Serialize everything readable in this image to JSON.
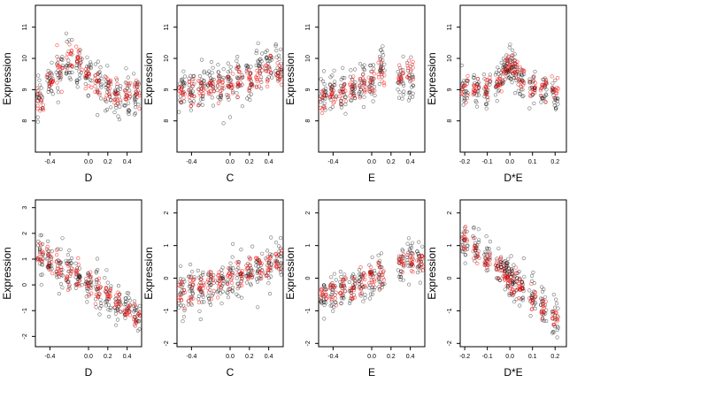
{
  "chart_data": [
    {
      "type": "scatter",
      "xlabel": "D",
      "ylabel": "Expression",
      "xlim": [
        -0.55,
        0.55
      ],
      "ylim": [
        7.0,
        11.7
      ],
      "xticks": [
        -0.4,
        0.0,
        0.2,
        0.4
      ],
      "xtick_labels": [
        "-0.4",
        "0.0",
        "0.2",
        "0.4"
      ],
      "yticks": [
        8,
        9,
        10,
        11
      ],
      "ytick_labels": [
        "8",
        "9",
        "10",
        "11"
      ],
      "groups": [
        -0.5,
        -0.4,
        -0.3,
        -0.2,
        -0.1,
        0.0,
        0.1,
        0.2,
        0.3,
        0.4,
        0.5
      ],
      "black_centers": [
        8.8,
        9.3,
        9.5,
        10.0,
        9.7,
        9.5,
        9.3,
        9.0,
        8.8,
        8.7,
        8.8
      ],
      "red_centers": [
        8.7,
        9.2,
        9.7,
        10.1,
        9.9,
        9.5,
        9.2,
        9.0,
        8.9,
        8.8,
        9.0
      ],
      "spread": 0.55,
      "grid": false,
      "legend": "none"
    },
    {
      "type": "scatter",
      "xlabel": "C",
      "ylabel": "Expression",
      "xlim": [
        -0.55,
        0.55
      ],
      "ylim": [
        7.0,
        11.7
      ],
      "xticks": [
        -0.4,
        0.0,
        0.2,
        0.4
      ],
      "xtick_labels": [
        "-0.4",
        "0.0",
        "0.2",
        "0.4"
      ],
      "yticks": [
        8,
        9,
        10,
        11
      ],
      "ytick_labels": [
        "8",
        "9",
        "10",
        "11"
      ],
      "groups": [
        -0.5,
        -0.4,
        -0.3,
        -0.2,
        -0.1,
        0.0,
        0.1,
        0.2,
        0.3,
        0.4,
        0.5
      ],
      "black_centers": [
        9.0,
        9.0,
        9.1,
        9.2,
        9.2,
        9.3,
        9.4,
        9.4,
        9.6,
        9.8,
        9.7
      ],
      "red_centers": [
        9.0,
        9.0,
        9.0,
        9.1,
        9.2,
        9.2,
        9.3,
        9.4,
        9.5,
        9.6,
        9.6
      ],
      "spread": 0.6,
      "grid": false,
      "legend": "none"
    },
    {
      "type": "scatter",
      "xlabel": "E",
      "ylabel": "Expression",
      "xlim": [
        -0.55,
        0.55
      ],
      "ylim": [
        7.0,
        11.7
      ],
      "xticks": [
        -0.4,
        0.0,
        0.2,
        0.4
      ],
      "xtick_labels": [
        "-0.4",
        "0.0",
        "0.2",
        "0.4"
      ],
      "yticks": [
        8,
        9,
        10,
        11
      ],
      "ytick_labels": [
        "8",
        "9",
        "10",
        "11"
      ],
      "groups": [
        -0.5,
        -0.4,
        -0.3,
        -0.2,
        -0.1,
        0.0,
        0.1,
        0.3,
        0.4
      ],
      "black_centers": [
        8.9,
        9.0,
        9.0,
        9.0,
        9.2,
        9.3,
        9.8,
        9.2,
        9.4
      ],
      "red_centers": [
        8.7,
        8.8,
        8.9,
        9.0,
        9.1,
        9.2,
        9.6,
        9.4,
        9.6
      ],
      "spread": 0.55,
      "grid": false,
      "legend": "none"
    },
    {
      "type": "scatter",
      "xlabel": "D*E",
      "ylabel": "Expression",
      "xlim": [
        -0.22,
        0.25
      ],
      "ylim": [
        7.0,
        11.7
      ],
      "xticks": [
        -0.2,
        -0.1,
        0.0,
        0.1,
        0.2
      ],
      "xtick_labels": [
        "-0.2",
        "-0.1",
        "0.0",
        "0.1",
        "0.2"
      ],
      "yticks": [
        8,
        9,
        10,
        11
      ],
      "ytick_labels": [
        "8",
        "9",
        "10",
        "11"
      ],
      "groups": [
        -0.2,
        -0.15,
        -0.1,
        -0.05,
        -0.02,
        0.0,
        0.02,
        0.05,
        0.1,
        0.15,
        0.2
      ],
      "black_centers": [
        9.0,
        9.0,
        9.0,
        9.2,
        9.6,
        9.8,
        9.6,
        9.3,
        9.1,
        9.0,
        8.9
      ],
      "red_centers": [
        9.1,
        9.1,
        9.1,
        9.2,
        9.7,
        9.9,
        9.7,
        9.3,
        9.1,
        9.1,
        9.0
      ],
      "spread": 0.5,
      "grid": false,
      "legend": "none"
    },
    {
      "type": "scatter",
      "xlabel": "D",
      "ylabel": "Expression",
      "xlim": [
        -0.55,
        0.55
      ],
      "ylim": [
        -2.4,
        3.3
      ],
      "xticks": [
        -0.4,
        0.0,
        0.2,
        0.4
      ],
      "xtick_labels": [
        "-0.4",
        "0.0",
        "0.2",
        "0.4"
      ],
      "yticks": [
        -2,
        -1,
        0,
        1,
        2,
        3
      ],
      "ytick_labels": [
        "-2",
        "-1",
        "0",
        "1",
        "2",
        "3"
      ],
      "groups": [
        -0.5,
        -0.4,
        -0.3,
        -0.2,
        -0.1,
        0.0,
        0.1,
        0.2,
        0.3,
        0.4,
        0.5
      ],
      "black_centers": [
        1.2,
        1.0,
        0.7,
        0.5,
        0.3,
        0.0,
        -0.2,
        -0.4,
        -0.6,
        -0.8,
        -1.1
      ],
      "red_centers": [
        1.2,
        0.95,
        0.7,
        0.45,
        0.25,
        0.0,
        -0.25,
        -0.5,
        -0.7,
        -0.95,
        -1.2
      ],
      "spread": 0.6,
      "grid": false,
      "legend": "none"
    },
    {
      "type": "scatter",
      "xlabel": "C",
      "ylabel": "Expression",
      "xlim": [
        -0.55,
        0.55
      ],
      "ylim": [
        -2.1,
        2.4
      ],
      "xticks": [
        -0.4,
        0.0,
        0.2,
        0.4
      ],
      "xtick_labels": [
        "-0.4",
        "0.0",
        "0.2",
        "0.4"
      ],
      "yticks": [
        -2,
        -1,
        0,
        1,
        2
      ],
      "ytick_labels": [
        "-2",
        "-1",
        "0",
        "1",
        "2"
      ],
      "groups": [
        -0.5,
        -0.4,
        -0.3,
        -0.2,
        -0.1,
        0.0,
        0.1,
        0.2,
        0.3,
        0.4,
        0.5
      ],
      "black_centers": [
        -0.4,
        -0.3,
        -0.3,
        -0.2,
        -0.1,
        0.0,
        0.1,
        0.2,
        0.3,
        0.4,
        0.5
      ],
      "red_centers": [
        -0.45,
        -0.35,
        -0.3,
        -0.2,
        -0.1,
        0.0,
        0.1,
        0.2,
        0.3,
        0.4,
        0.5
      ],
      "spread": 0.55,
      "grid": false,
      "legend": "none"
    },
    {
      "type": "scatter",
      "xlabel": "E",
      "ylabel": "Expression",
      "xlim": [
        -0.55,
        0.55
      ],
      "ylim": [
        -2.1,
        2.4
      ],
      "xticks": [
        -0.4,
        0.0,
        0.2,
        0.4
      ],
      "xtick_labels": [
        "-0.4",
        "0.0",
        "0.2",
        "0.4"
      ],
      "yticks": [
        -2,
        -1,
        0,
        1,
        2
      ],
      "ytick_labels": [
        "-2",
        "-1",
        "0",
        "1",
        "2"
      ],
      "groups": [
        -0.5,
        -0.4,
        -0.3,
        -0.2,
        -0.1,
        0.0,
        0.1,
        0.3,
        0.4,
        0.5
      ],
      "black_centers": [
        -0.5,
        -0.45,
        -0.35,
        -0.25,
        -0.15,
        -0.05,
        0.1,
        0.4,
        0.5,
        0.55
      ],
      "red_centers": [
        -0.55,
        -0.45,
        -0.35,
        -0.25,
        -0.15,
        -0.05,
        0.1,
        0.4,
        0.5,
        0.6
      ],
      "spread": 0.5,
      "grid": false,
      "legend": "none"
    },
    {
      "type": "scatter",
      "xlabel": "D*E",
      "ylabel": "Expression",
      "xlim": [
        -0.22,
        0.25
      ],
      "ylim": [
        -2.1,
        2.4
      ],
      "xticks": [
        -0.2,
        -0.1,
        0.0,
        0.1,
        0.2
      ],
      "xtick_labels": [
        "-0.2",
        "-0.1",
        "0.0",
        "0.1",
        "0.2"
      ],
      "yticks": [
        -2,
        -1,
        0,
        1,
        2
      ],
      "ytick_labels": [
        "-2",
        "-1",
        "0",
        "1",
        "2"
      ],
      "groups": [
        -0.2,
        -0.15,
        -0.1,
        -0.05,
        -0.02,
        0.0,
        0.02,
        0.05,
        0.1,
        0.15,
        0.2
      ],
      "black_centers": [
        1.1,
        0.9,
        0.6,
        0.4,
        0.2,
        0.0,
        -0.1,
        -0.3,
        -0.6,
        -0.9,
        -1.2
      ],
      "red_centers": [
        1.2,
        0.9,
        0.65,
        0.35,
        0.15,
        0.0,
        -0.15,
        -0.3,
        -0.6,
        -0.9,
        -1.25
      ],
      "spread": 0.5,
      "grid": false,
      "legend": "none"
    }
  ],
  "colors": {
    "observed": "#000000",
    "fitted": "#ff0000",
    "axis": "#000000"
  }
}
